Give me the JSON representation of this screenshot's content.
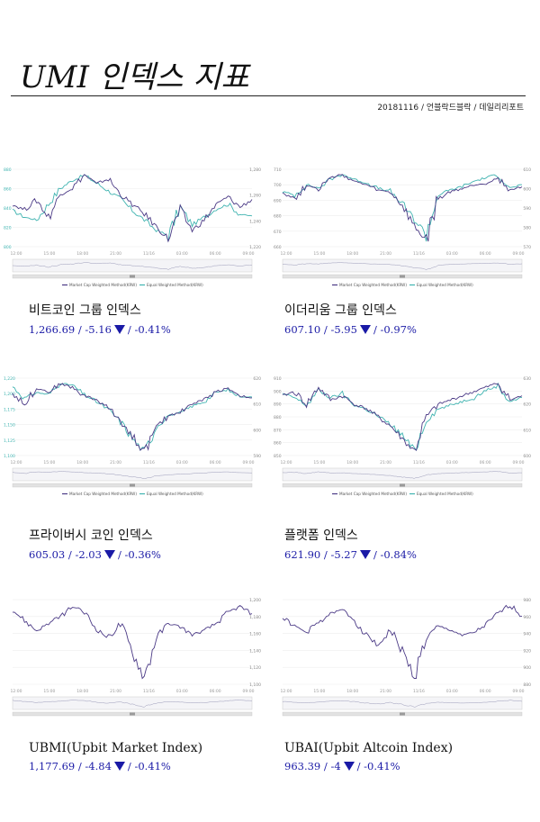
{
  "header": {
    "title": "UMI 인덱스 지표",
    "byline": "20181116 / 언블락드블락 / 데일리리포트"
  },
  "colors": {
    "market": "#4b3a86",
    "equal": "#3fb3b0",
    "value_text": "#1a1aa6"
  },
  "x_ticks": [
    "12:00",
    "15:00",
    "18:00",
    "21:00",
    "11/16",
    "03:00",
    "06:00",
    "09:00"
  ],
  "legend": {
    "market": "Market Cap Weighted Method(KRW)",
    "equal": "Equal Weighted Method(KRW)"
  },
  "charts": [
    {
      "name": "비트코인 그룹 인덱스",
      "value": "1,266.69",
      "change": "-5.16",
      "pct": "-0.41%",
      "yticks_left": [
        "880",
        "860",
        "840",
        "820",
        "800"
      ],
      "yticks_right": [
        "1,280",
        "1,260",
        "1,240",
        "1,220"
      ]
    },
    {
      "name": "이더리움 그룹 인덱스",
      "value": "607.10",
      "change": "-5.95",
      "pct": "-0.97%",
      "yticks_left": [
        "710",
        "700",
        "690",
        "680",
        "670",
        "660"
      ],
      "yticks_right": [
        "610",
        "600",
        "590",
        "580",
        "570"
      ]
    },
    {
      "name": "프라이버시 코인 인덱스",
      "value": "605.03",
      "change": "-2.03",
      "pct": "-0.36%",
      "yticks_left": [
        "1,220",
        "1,200",
        "1,175",
        "1,150",
        "1,125",
        "1,100"
      ],
      "yticks_right": [
        "620",
        "610",
        "600",
        "590"
      ]
    },
    {
      "name": "플랫폼 인덱스",
      "value": "621.90",
      "change": "-5.27",
      "pct": "-0.84%",
      "yticks_left": [
        "910",
        "900",
        "890",
        "880",
        "870",
        "860",
        "850"
      ],
      "yticks_right": [
        "630",
        "620",
        "610",
        "600"
      ]
    },
    {
      "name": "UBMI(Upbit Market Index)",
      "value": "1,177.69",
      "change": "-4.84",
      "pct": "-0.41%",
      "yticks_left": [],
      "yticks_right": [
        "1,200",
        "1,180",
        "1,160",
        "1,140",
        "1,120",
        "1,100"
      ]
    },
    {
      "name": "UBAI(Upbit Altcoin Index)",
      "value": "963.39",
      "change": "-4",
      "pct": "-0.41%",
      "yticks_left": [],
      "yticks_right": [
        "980",
        "960",
        "940",
        "920",
        "900",
        "880"
      ]
    }
  ],
  "chart_data": [
    {
      "type": "line",
      "title": "비트코인 그룹 인덱스",
      "series": [
        {
          "name": "Market Cap Weighted Method(KRW)",
          "values": [
            1262,
            1258,
            1266,
            1252,
            1270,
            1275,
            1285,
            1278,
            1282,
            1270,
            1262,
            1255,
            1245,
            1236,
            1258,
            1242,
            1250,
            1262,
            1268,
            1260,
            1266
          ]
        },
        {
          "name": "Equal Weighted Method(KRW)",
          "values": [
            845,
            840,
            838,
            850,
            862,
            868,
            872,
            866,
            860,
            854,
            845,
            838,
            830,
            826,
            848,
            834,
            840,
            846,
            850,
            842,
            841
          ]
        }
      ]
    },
    {
      "type": "line",
      "title": "이더리움 그룹 인덱스",
      "series": [
        {
          "name": "Market Cap Weighted Method(KRW)",
          "values": [
            604,
            600,
            608,
            606,
            612,
            614,
            610,
            608,
            605,
            604,
            596,
            584,
            576,
            600,
            604,
            606,
            608,
            609,
            612,
            605,
            607
          ]
        },
        {
          "name": "Equal Weighted Method(KRW)",
          "values": [
            692,
            690,
            696,
            694,
            699,
            702,
            699,
            697,
            694,
            692,
            685,
            676,
            668,
            690,
            693,
            695,
            698,
            700,
            702,
            694,
            696
          ]
        }
      ]
    },
    {
      "type": "line",
      "title": "프라이버시 코인 인덱스",
      "series": [
        {
          "name": "Market Cap Weighted Method(KRW)",
          "values": [
            607,
            602,
            610,
            608,
            612,
            610,
            606,
            604,
            600,
            594,
            586,
            578,
            590,
            596,
            598,
            602,
            604,
            608,
            610,
            606,
            605
          ]
        },
        {
          "name": "Equal Weighted Method(KRW)",
          "values": [
            1195,
            1185,
            1190,
            1188,
            1198,
            1196,
            1188,
            1182,
            1175,
            1165,
            1150,
            1138,
            1160,
            1170,
            1172,
            1178,
            1182,
            1190,
            1192,
            1186,
            1186
          ]
        }
      ]
    },
    {
      "type": "line",
      "title": "플랫폼 인덱스",
      "series": [
        {
          "name": "Market Cap Weighted Method(KRW)",
          "values": [
            622,
            624,
            618,
            626,
            620,
            622,
            618,
            616,
            612,
            608,
            602,
            596,
            612,
            618,
            620,
            622,
            624,
            626,
            628,
            620,
            622
          ]
        },
        {
          "name": "Equal Weighted Method(KRW)",
          "values": [
            898,
            896,
            892,
            900,
            896,
            898,
            892,
            890,
            886,
            882,
            876,
            868,
            884,
            890,
            892,
            894,
            896,
            900,
            902,
            894,
            896
          ]
        }
      ]
    },
    {
      "type": "line",
      "title": "UBMI(Upbit Market Index)",
      "series": [
        {
          "name": "UBMI",
          "values": [
            1180,
            1172,
            1165,
            1170,
            1175,
            1182,
            1178,
            1166,
            1160,
            1170,
            1150,
            1132,
            1160,
            1170,
            1168,
            1162,
            1165,
            1170,
            1178,
            1182,
            1177
          ]
        }
      ]
    },
    {
      "type": "line",
      "title": "UBAI(Upbit Altcoin Index)",
      "series": [
        {
          "name": "UBAI",
          "values": [
            962,
            955,
            950,
            958,
            965,
            968,
            960,
            948,
            940,
            952,
            935,
            915,
            945,
            955,
            952,
            948,
            950,
            956,
            965,
            972,
            963
          ]
        }
      ]
    }
  ]
}
